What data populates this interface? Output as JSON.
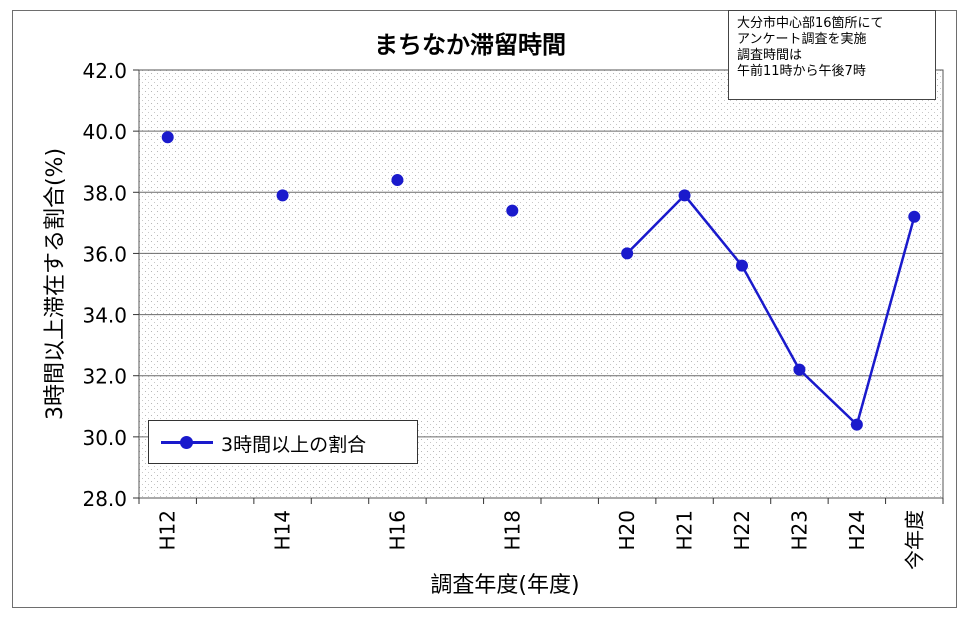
{
  "chart_data": {
    "type": "line",
    "title": "まちなか滞留時間",
    "xlabel": "調査年度(年度)",
    "ylabel": "3時間以上滞在する割合(%)",
    "categories": [
      "H12",
      "",
      "H14",
      "",
      "H16",
      "",
      "H18",
      "",
      "H20",
      "H21",
      "H22",
      "H23",
      "H24",
      "今年度"
    ],
    "tick_labels": [
      "H12",
      "H14",
      "H16",
      "H18",
      "H20",
      "H21",
      "H22",
      "H23",
      "H24",
      "今年度"
    ],
    "ylim": [
      28.0,
      42.0
    ],
    "yticks": [
      "42.0",
      "40.0",
      "38.0",
      "36.0",
      "34.0",
      "32.0",
      "30.0",
      "28.0"
    ],
    "grid": true,
    "legend_position": "bottom-left",
    "series": [
      {
        "name": "3時間以上の割合",
        "color": "#1a1acc",
        "points": [
          {
            "x": "H12",
            "y": 39.8
          },
          {
            "x": "H14",
            "y": 37.9
          },
          {
            "x": "H16",
            "y": 38.4
          },
          {
            "x": "H18",
            "y": 37.4
          },
          {
            "x": "H20",
            "y": 36.0
          },
          {
            "x": "H21",
            "y": 37.9
          },
          {
            "x": "H22",
            "y": 35.6
          },
          {
            "x": "H23",
            "y": 32.2
          },
          {
            "x": "H24",
            "y": 30.4
          },
          {
            "x": "今年度",
            "y": 37.2
          }
        ],
        "connected_from": "H20"
      }
    ]
  },
  "note": {
    "lines": [
      "大分市中心部16箇所にて",
      "アンケート調査を実施",
      "調査時間は",
      "午前11時から午後7時"
    ]
  },
  "legend": {
    "label": "3時間以上の割合"
  }
}
